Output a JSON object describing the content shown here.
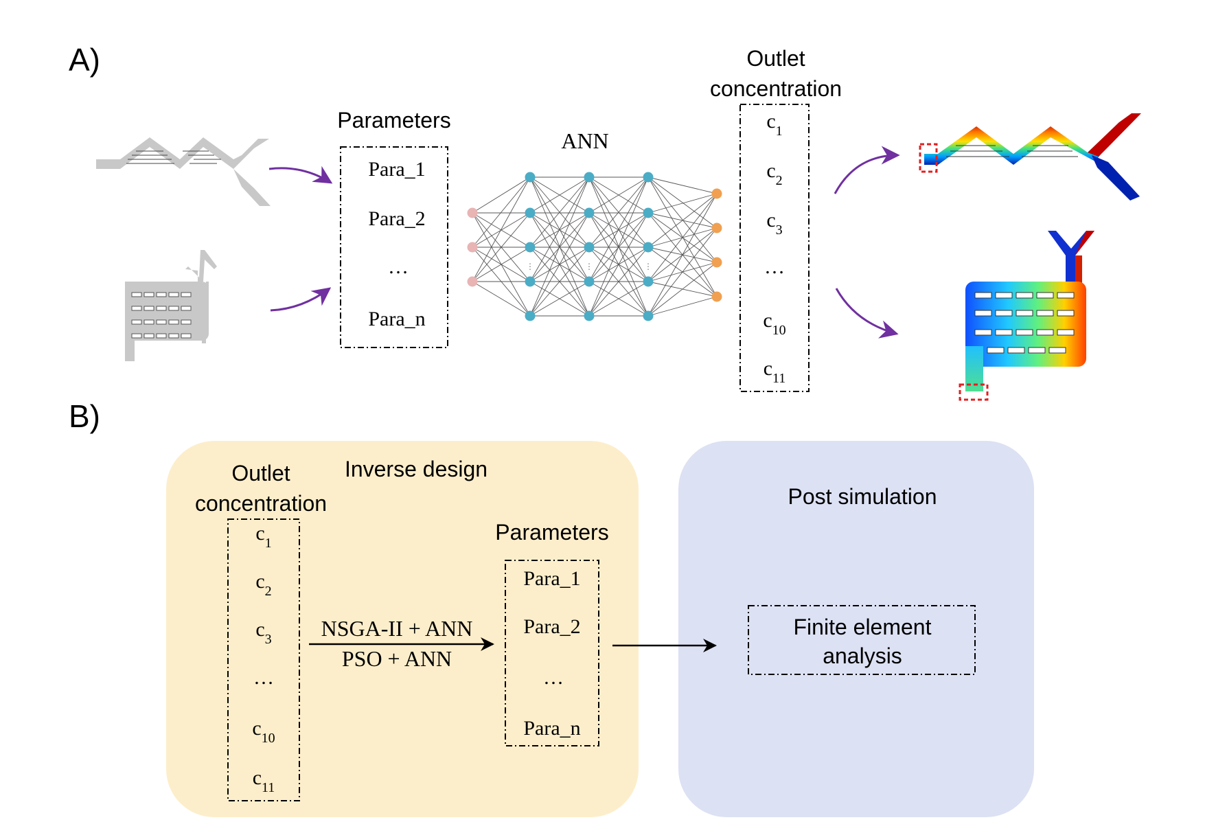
{
  "panel_a": {
    "label": "A)",
    "parameters_title": "Parameters",
    "parameters": [
      "Para_1",
      "Para_2",
      "…",
      "Para_n"
    ],
    "ann_label": "ANN",
    "outlet_title_line1": "Outlet",
    "outlet_title_line2": "concentration",
    "outlets": [
      {
        "base": "c",
        "sub": "1"
      },
      {
        "base": "c",
        "sub": "2"
      },
      {
        "base": "c",
        "sub": "3"
      },
      {
        "base": "…",
        "sub": ""
      },
      {
        "base": "c",
        "sub": "10"
      },
      {
        "base": "c",
        "sub": "11"
      }
    ]
  },
  "panel_b": {
    "label": "B)",
    "inverse_title": "Inverse design",
    "outlet_title_line1": "Outlet",
    "outlet_title_line2": "concentration",
    "outlets": [
      {
        "base": "c",
        "sub": "1"
      },
      {
        "base": "c",
        "sub": "2"
      },
      {
        "base": "c",
        "sub": "3"
      },
      {
        "base": "…",
        "sub": ""
      },
      {
        "base": "c",
        "sub": "10"
      },
      {
        "base": "c",
        "sub": "11"
      }
    ],
    "method_line1": "NSGA-II + ANN",
    "method_line2": "PSO + ANN",
    "parameters_title": "Parameters",
    "parameters": [
      "Para_1",
      "Para_2",
      "…",
      "Para_n"
    ],
    "post_title": "Post simulation",
    "fea_line1": "Finite element",
    "fea_line2": "analysis"
  },
  "colors": {
    "inverse_bg": "#fdeecb",
    "post_bg": "#dce1f3",
    "arrow_purple": "#7030a0",
    "node_input": "#e8b4b4",
    "node_hidden": "#4bacc6",
    "node_output": "#f0a050",
    "geometry_gray": "#c8c8c8",
    "highlight_red": "#e02020"
  }
}
